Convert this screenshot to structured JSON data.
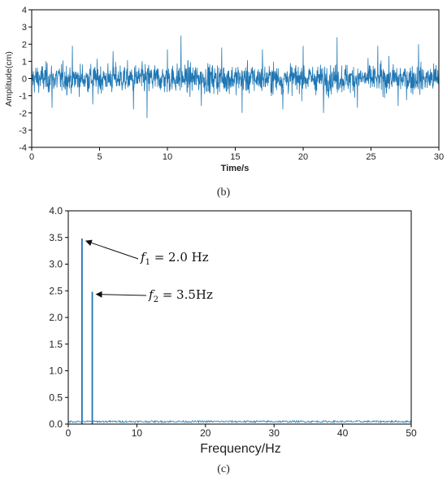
{
  "chart_data": [
    {
      "type": "line",
      "panel_label": "(b)",
      "xlabel": "Time/s",
      "ylabel": "Amplitude(cm)",
      "xlim": [
        0,
        30
      ],
      "ylim": [
        -4,
        4
      ],
      "x_ticks": [
        "0",
        "5",
        "10",
        "15",
        "20",
        "25",
        "30"
      ],
      "y_ticks": [
        "4",
        "3",
        "2",
        "1",
        "0",
        "-1",
        "-2",
        "-3",
        "-4"
      ],
      "line_color": "#1f77b4",
      "grid": false,
      "series": [
        {
          "x": [
            0,
            1.5,
            3,
            4.5,
            6,
            7.5,
            8.5,
            10,
            11,
            12.5,
            14,
            15.5,
            17,
            18.5,
            20,
            21.5,
            22.5,
            24,
            25.5,
            27,
            28.5,
            30
          ],
          "y": [
            1.0,
            -1.7,
            1.9,
            -1.5,
            1.6,
            -1.8,
            -2.3,
            1.7,
            2.5,
            -1.6,
            1.8,
            -2.0,
            1.7,
            -1.8,
            1.9,
            -2.0,
            2.4,
            -1.7,
            1.9,
            -1.6,
            2.0,
            1.5
          ]
        }
      ]
    },
    {
      "type": "line",
      "panel_label": "(c)",
      "xlabel": "Frequency/Hz",
      "ylabel": "",
      "xlim": [
        0,
        50
      ],
      "ylim": [
        0,
        4.0
      ],
      "x_ticks": [
        "0",
        "10",
        "20",
        "30",
        "40",
        "50"
      ],
      "y_ticks": [
        "4.0",
        "3.5",
        "3.0",
        "2.5",
        "2.0",
        "1.5",
        "1.0",
        "0.5",
        "0.0"
      ],
      "line_color": "#1f77b4",
      "grid": false,
      "series": [
        {
          "x": [
            0,
            2.0,
            3.5,
            10,
            20,
            30,
            40,
            50
          ],
          "y": [
            0.04,
            3.48,
            2.48,
            0.04,
            0.04,
            0.04,
            0.04,
            0.04
          ]
        }
      ],
      "annotations": [
        {
          "label": "f",
          "subscript": "1",
          "text": " = 2.0 Hz",
          "x": 2.0,
          "y": 3.48
        },
        {
          "label": "f",
          "subscript": "2",
          "text": " = 3.5Hz",
          "x": 3.5,
          "y": 2.48
        }
      ]
    }
  ]
}
